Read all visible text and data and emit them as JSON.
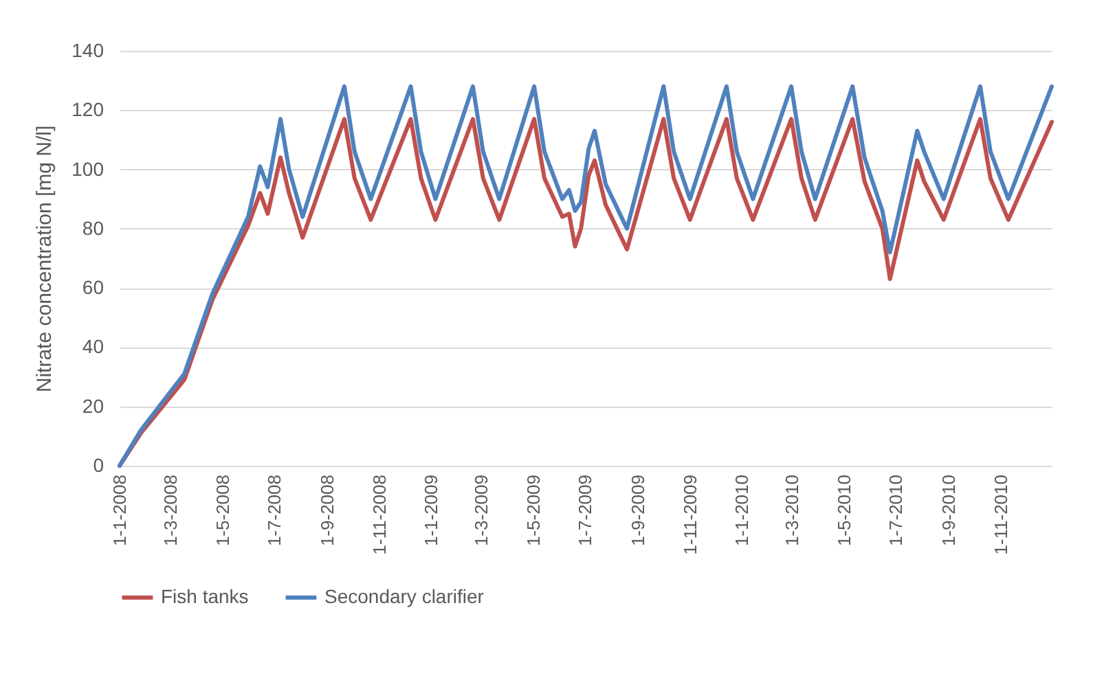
{
  "chart_data": {
    "type": "line",
    "ylabel": "Nitrate concentration [mg N/l]",
    "x": [
      "2008-01-01",
      "2008-01-26",
      "2008-03-17",
      "2008-04-19",
      "2008-05-31",
      "2008-06-14",
      "2008-06-23",
      "2008-07-08",
      "2008-07-18",
      "2008-08-03",
      "2008-09-21",
      "2008-10-03",
      "2008-10-22",
      "2008-12-08",
      "2008-12-20",
      "2009-01-06",
      "2009-02-19",
      "2009-03-03",
      "2009-03-22",
      "2009-05-02",
      "2009-05-14",
      "2009-06-04",
      "2009-06-12",
      "2009-06-19",
      "2009-06-26",
      "2009-07-05",
      "2009-07-12",
      "2009-07-25",
      "2009-08-19",
      "2009-10-01",
      "2009-10-13",
      "2009-11-01",
      "2009-12-14",
      "2009-12-26",
      "2010-01-14",
      "2010-02-28",
      "2010-03-12",
      "2010-03-28",
      "2010-05-11",
      "2010-05-25",
      "2010-06-15",
      "2010-06-24",
      "2010-07-26",
      "2010-08-03",
      "2010-08-26",
      "2010-10-08",
      "2010-10-20",
      "2010-11-10",
      "2010-12-31"
    ],
    "series": [
      {
        "name": "Fish tanks",
        "color": "#c0504d",
        "values": [
          0,
          11,
          29,
          56,
          81,
          92,
          85,
          104,
          92,
          77,
          117,
          97,
          83,
          117,
          97,
          83,
          117,
          97,
          83,
          117,
          97,
          84,
          85,
          74,
          80,
          98,
          103,
          88,
          73,
          117,
          97,
          83,
          117,
          97,
          83,
          117,
          97,
          83,
          117,
          96,
          80,
          63,
          103,
          96,
          83,
          117,
          97,
          83,
          116
        ]
      },
      {
        "name": "Secondary clarifier",
        "color": "#4f81bd",
        "values": [
          0,
          12,
          31,
          58,
          84,
          101,
          94,
          117,
          100,
          84,
          128,
          106,
          90,
          128,
          106,
          90,
          128,
          106,
          90,
          128,
          106,
          90,
          93,
          86,
          89,
          107,
          113,
          95,
          80,
          128,
          106,
          90,
          128,
          106,
          90,
          128,
          106,
          90,
          128,
          104,
          86,
          72,
          113,
          106,
          90,
          128,
          106,
          90,
          128
        ]
      }
    ],
    "xlim": [
      "2008-01-01",
      "2010-12-31"
    ],
    "xticks": [
      {
        "value": "2008-01-01",
        "label": "1-1-2008"
      },
      {
        "value": "2008-03-01",
        "label": "1-3-2008"
      },
      {
        "value": "2008-05-01",
        "label": "1-5-2008"
      },
      {
        "value": "2008-07-01",
        "label": "1-7-2008"
      },
      {
        "value": "2008-09-01",
        "label": "1-9-2008"
      },
      {
        "value": "2008-11-01",
        "label": "1-11-2008"
      },
      {
        "value": "2009-01-01",
        "label": "1-1-2009"
      },
      {
        "value": "2009-03-01",
        "label": "1-3-2009"
      },
      {
        "value": "2009-05-01",
        "label": "1-5-2009"
      },
      {
        "value": "2009-07-01",
        "label": "1-7-2009"
      },
      {
        "value": "2009-09-01",
        "label": "1-9-2009"
      },
      {
        "value": "2009-11-01",
        "label": "1-11-2009"
      },
      {
        "value": "2010-01-01",
        "label": "1-1-2010"
      },
      {
        "value": "2010-03-01",
        "label": "1-3-2010"
      },
      {
        "value": "2010-05-01",
        "label": "1-5-2010"
      },
      {
        "value": "2010-07-01",
        "label": "1-7-2010"
      },
      {
        "value": "2010-09-01",
        "label": "1-9-2010"
      },
      {
        "value": "2010-11-01",
        "label": "1-11-2010"
      }
    ],
    "ylim": [
      0,
      140
    ],
    "yticks": [
      0,
      20,
      40,
      60,
      80,
      100,
      120,
      140
    ],
    "grid": "y",
    "legend": "bottom",
    "marker": "none",
    "line_style": "solid"
  }
}
